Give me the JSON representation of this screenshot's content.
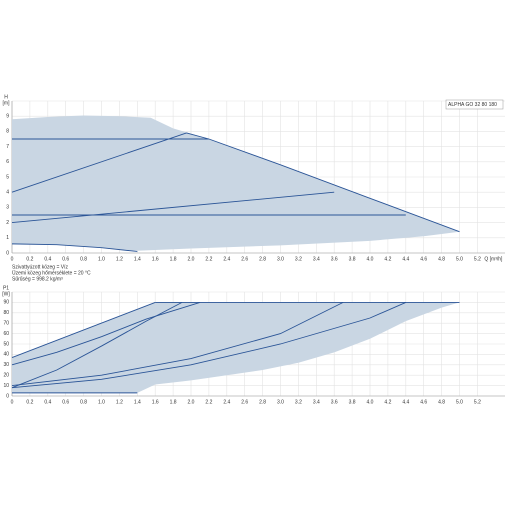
{
  "chart_data": [
    {
      "type": "line",
      "label": "ALPHA GO 32 80 180",
      "y_label": "H",
      "y_unit": "[m]",
      "x_label": "Q [m³/h]",
      "notes": [
        "Szivattyúzott közeg = Víz",
        "Üzemi közeg hőmérséklete = 20 °C",
        "Sűrűség = 998.2 kg/m³"
      ],
      "grid": true,
      "xlim": [
        0,
        5.4
      ],
      "ylim": [
        0,
        10
      ],
      "xticks": [
        0,
        0.2,
        0.4,
        0.6,
        0.8,
        {
          "value": 1,
          "label": "1.0"
        },
        1.2,
        1.4,
        1.6,
        1.8,
        {
          "value": 2,
          "label": "2.0"
        },
        2.2,
        2.4,
        2.6,
        2.8,
        {
          "value": 3,
          "label": "3.0"
        },
        3.2,
        3.4,
        3.6,
        3.8,
        {
          "value": 4,
          "label": "4.0"
        },
        4.2,
        4.4,
        4.6,
        4.8,
        {
          "value": 5,
          "label": "5.0"
        },
        5.2
      ],
      "yticks": [
        0,
        1,
        2,
        3,
        4,
        5,
        6,
        7,
        8,
        9
      ],
      "series": [
        {
          "fill": true,
          "color": "#c9d6e3",
          "x": [
            0,
            0.4,
            0.8,
            1.2,
            1.55,
            1.8,
            2.2,
            3,
            4,
            5,
            4.6,
            4,
            3,
            2,
            1.6,
            1.4,
            1,
            0.5,
            0
          ],
          "values": [
            8.8,
            8.95,
            9.05,
            9,
            8.9,
            8.2,
            7.5,
            5.8,
            3.6,
            1.4,
            1.1,
            0.8,
            0.5,
            0.3,
            0.2,
            0.15,
            0.35,
            0.55,
            0.6
          ]
        },
        {
          "color": "#2b5597",
          "x": [
            1.95,
            2.2,
            3,
            4,
            5
          ],
          "values": [
            7.9,
            7.5,
            5.8,
            3.6,
            1.4
          ]
        },
        {
          "color": "#2b5597",
          "x": [
            0,
            2.2
          ],
          "values": [
            7.5,
            7.5
          ]
        },
        {
          "color": "#2b5597",
          "x": [
            0,
            1.95
          ],
          "values": [
            4,
            7.9
          ]
        },
        {
          "color": "#2b5597",
          "x": [
            0,
            4.4
          ],
          "values": [
            2.5,
            2.5
          ]
        },
        {
          "color": "#2b5597",
          "x": [
            0,
            3.6
          ],
          "values": [
            2,
            4
          ]
        },
        {
          "color": "#2b5597",
          "x": [
            0,
            0.5,
            1,
            1.4
          ],
          "values": [
            0.6,
            0.55,
            0.35,
            0.1
          ]
        }
      ]
    },
    {
      "type": "line",
      "y_label": "P1",
      "y_unit": "[W]",
      "grid": true,
      "xlim": [
        0,
        5.4
      ],
      "ylim": [
        0,
        100
      ],
      "xticks": [
        0,
        0.2,
        0.4,
        0.6,
        0.8,
        {
          "value": 1,
          "label": "1.0"
        },
        1.2,
        1.4,
        1.6,
        1.8,
        {
          "value": 2,
          "label": "2.0"
        },
        2.2,
        2.4,
        2.6,
        2.8,
        {
          "value": 3,
          "label": "3.0"
        },
        3.2,
        3.4,
        3.6,
        3.8,
        {
          "value": 4,
          "label": "4.0"
        },
        4.2,
        4.4,
        4.6,
        4.8,
        {
          "value": 5,
          "label": "5.0"
        },
        5.2
      ],
      "yticks": [
        0,
        10,
        20,
        30,
        40,
        50,
        60,
        70,
        80,
        90
      ],
      "series": [
        {
          "fill": true,
          "color": "#c9d6e3",
          "x": [
            0,
            1.6,
            5,
            4.8,
            4.4,
            4,
            3.6,
            3.2,
            2.8,
            2.4,
            2,
            1.6,
            1.4,
            0
          ],
          "values": [
            37,
            90,
            90,
            85,
            72,
            55,
            42,
            32,
            25,
            20,
            15,
            11,
            3,
            3
          ]
        },
        {
          "color": "#2b5597",
          "x": [
            0,
            1.6
          ],
          "values": [
            37,
            90
          ]
        },
        {
          "color": "#2b5597",
          "x": [
            1.6,
            5
          ],
          "values": [
            90,
            90
          ]
        },
        {
          "color": "#2b5597",
          "x": [
            0,
            0.5,
            1,
            1.5,
            2.1
          ],
          "values": [
            30,
            42,
            57,
            74,
            90
          ]
        },
        {
          "color": "#2b5597",
          "x": [
            0,
            0.5,
            1,
            1.5,
            1.9
          ],
          "values": [
            8,
            25,
            48,
            72,
            90
          ]
        },
        {
          "color": "#2b5597",
          "x": [
            0,
            1,
            2,
            3,
            3.7
          ],
          "values": [
            10,
            20,
            36,
            60,
            90
          ]
        },
        {
          "color": "#2b5597",
          "x": [
            0,
            1,
            2,
            3,
            4,
            4.4
          ],
          "values": [
            8,
            16,
            30,
            50,
            75,
            90
          ]
        },
        {
          "color": "#2b5597",
          "x": [
            0,
            1.4
          ],
          "values": [
            3,
            3
          ]
        }
      ]
    }
  ]
}
